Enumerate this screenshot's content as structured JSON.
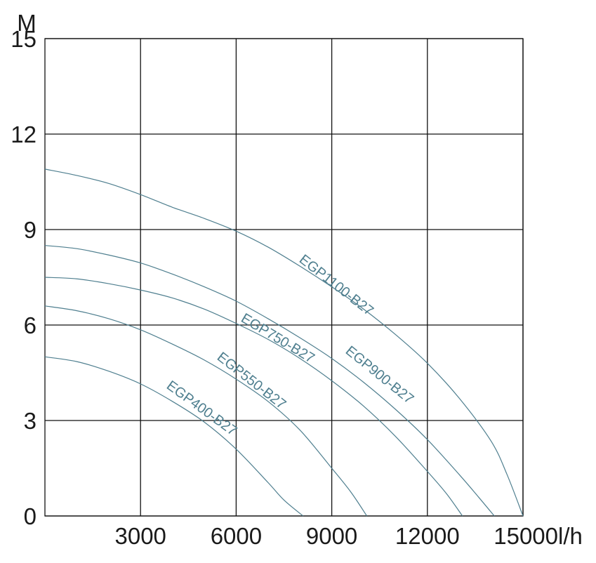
{
  "chart_data": {
    "type": "line",
    "title": "",
    "ylabel": "M",
    "xlabel": "l/h",
    "xlim": [
      0,
      15000
    ],
    "ylim": [
      0,
      15
    ],
    "x_ticks": [
      3000,
      6000,
      9000,
      12000,
      15000
    ],
    "x_tick_labels": [
      "3000",
      "6000",
      "9000",
      "12000",
      "15000"
    ],
    "y_ticks": [
      0,
      3,
      6,
      9,
      12,
      15
    ],
    "y_tick_labels": [
      "0",
      "3",
      "6",
      "9",
      "12",
      "15"
    ],
    "grid": true,
    "curve_color": "#4f7f8f",
    "series": [
      {
        "name": "EGP400-B27",
        "x": [
          0,
          1000,
          2000,
          3000,
          4000,
          5000,
          6000,
          7000,
          7500,
          8100
        ],
        "y": [
          5.0,
          4.85,
          4.55,
          4.15,
          3.6,
          2.95,
          2.1,
          1.05,
          0.5,
          0
        ]
      },
      {
        "name": "EGP550-B27",
        "x": [
          0,
          1000,
          2000,
          3000,
          4000,
          5000,
          6000,
          7000,
          8000,
          9000,
          9600,
          10100
        ],
        "y": [
          6.6,
          6.45,
          6.2,
          5.85,
          5.4,
          4.9,
          4.3,
          3.6,
          2.7,
          1.5,
          0.75,
          0
        ]
      },
      {
        "name": "EGP750-B27",
        "x": [
          0,
          1000,
          2000,
          3000,
          4000,
          5000,
          6000,
          7000,
          8000,
          9000,
          10000,
          11000,
          12000,
          12600,
          13100
        ],
        "y": [
          7.5,
          7.45,
          7.3,
          7.1,
          6.85,
          6.5,
          6.05,
          5.55,
          4.95,
          4.25,
          3.45,
          2.5,
          1.4,
          0.7,
          0
        ]
      },
      {
        "name": "EGP900-B27",
        "x": [
          0,
          1000,
          2000,
          3000,
          4000,
          5000,
          6000,
          7000,
          8000,
          9000,
          10000,
          11000,
          12000,
          13000,
          13600,
          14100
        ],
        "y": [
          8.5,
          8.4,
          8.2,
          7.95,
          7.6,
          7.2,
          6.75,
          6.2,
          5.6,
          4.95,
          4.2,
          3.35,
          2.4,
          1.3,
          0.6,
          0
        ]
      },
      {
        "name": "EGP1100-B27",
        "x": [
          0,
          1000,
          2000,
          3000,
          4000,
          5000,
          6000,
          7000,
          8000,
          9000,
          10000,
          11000,
          12000,
          13000,
          14000,
          14500,
          15000
        ],
        "y": [
          10.9,
          10.7,
          10.45,
          10.1,
          9.7,
          9.35,
          8.95,
          8.45,
          7.85,
          7.2,
          6.5,
          5.7,
          4.8,
          3.7,
          2.35,
          1.3,
          0
        ]
      }
    ]
  }
}
